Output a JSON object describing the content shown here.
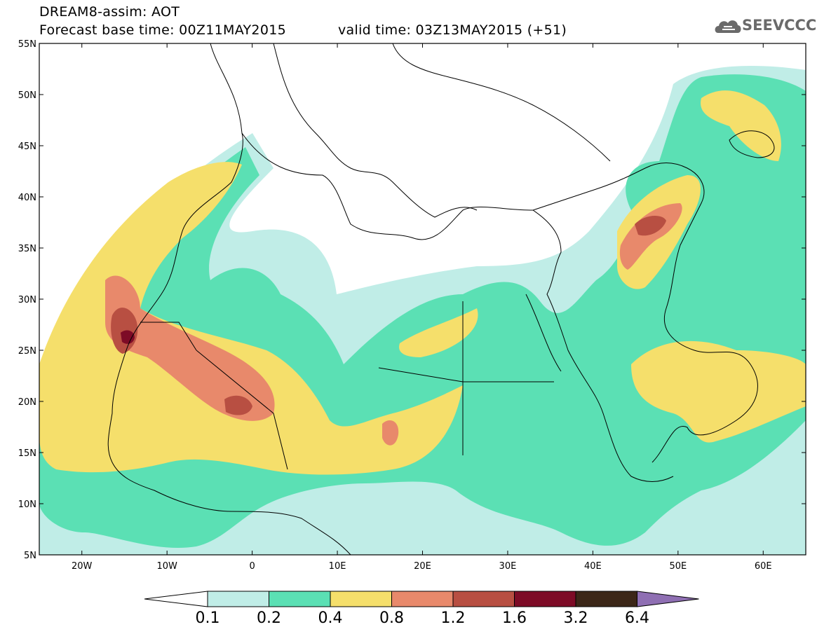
{
  "header": {
    "line1": "DREAM8-assim: AOT",
    "line2": "Forecast base time: 00Z11MAY2015",
    "valid": "valid time: 03Z13MAY2015 (+51)"
  },
  "logo": {
    "text": "SEEVCCC",
    "icon": "cloud-icon"
  },
  "map": {
    "lon_range": [
      -25,
      65
    ],
    "lat_range": [
      5,
      55
    ],
    "lat_ticks": [
      "5N",
      "10N",
      "15N",
      "20N",
      "25N",
      "30N",
      "35N",
      "40N",
      "45N",
      "50N",
      "55N"
    ],
    "lon_ticks": [
      "20W",
      "10W",
      "0",
      "10E",
      "20E",
      "30E",
      "40E",
      "50E",
      "60E"
    ]
  },
  "colorbar": {
    "colors": [
      "#c0ede7",
      "#5be0b4",
      "#f5df6b",
      "#e8896b",
      "#b84f42",
      "#7d0b26",
      "#3c2718",
      "#8f6fb3"
    ],
    "labels": [
      "0.1",
      "0.2",
      "0.4",
      "0.8",
      "1.2",
      "1.6",
      "3.2",
      "6.4"
    ]
  }
}
